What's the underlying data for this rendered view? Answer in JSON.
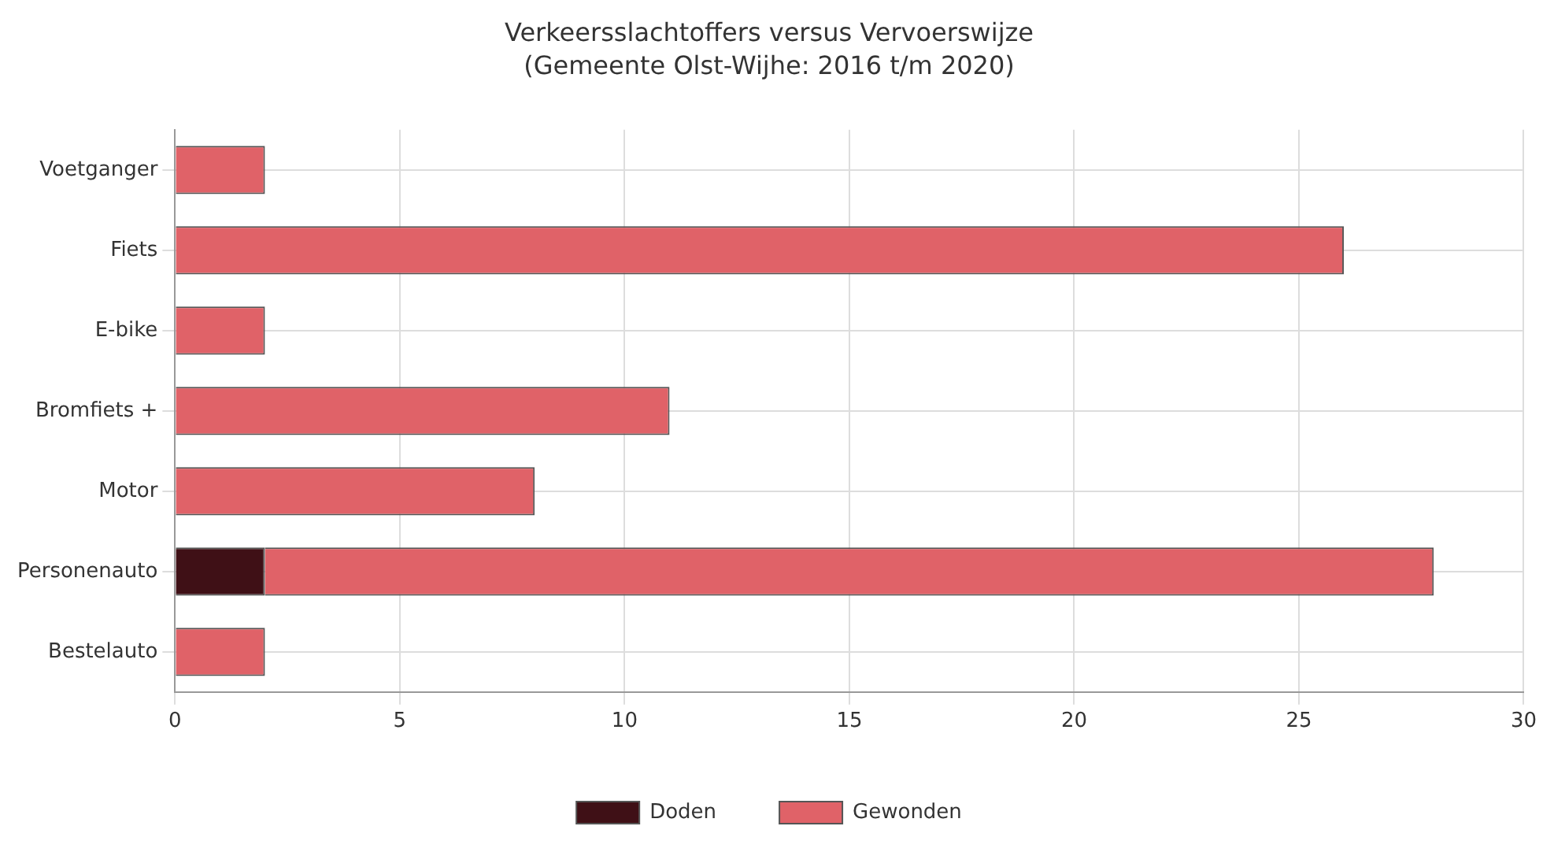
{
  "chart_data": {
    "type": "bar",
    "orientation": "horizontal",
    "stacked": true,
    "title": "Verkeersslachtoffers versus Vervoerswijze",
    "subtitle": "(Gemeente Olst-Wijhe: 2016 t/m 2020)",
    "categories": [
      "Voetganger",
      "Fiets",
      "E-bike",
      "Bromfiets +",
      "Motor",
      "Personenauto",
      "Bestelauto"
    ],
    "series": [
      {
        "name": "Doden",
        "color": "#3f1016",
        "values": [
          null,
          null,
          null,
          null,
          null,
          2,
          null
        ]
      },
      {
        "name": "Gewonden",
        "color": "#e06268",
        "values": [
          2,
          26,
          2,
          11,
          8,
          26,
          2
        ]
      }
    ],
    "xlim": [
      0,
      30
    ],
    "xticks": [
      0,
      5,
      10,
      15,
      20,
      25,
      30
    ],
    "grid": true,
    "legend": "bottom"
  }
}
